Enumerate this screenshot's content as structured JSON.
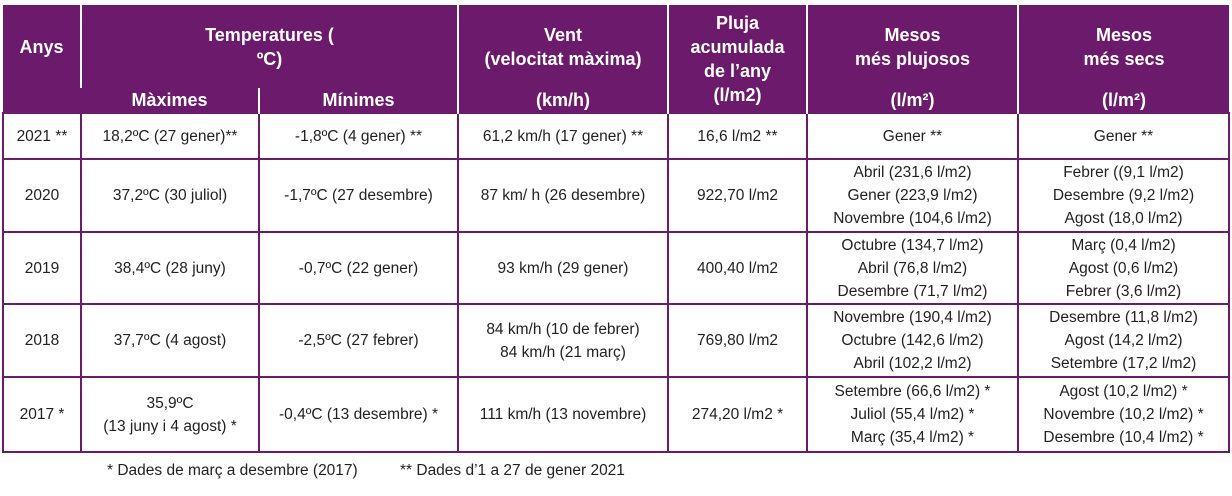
{
  "header": {
    "anys": "Anys",
    "temperatures": [
      "Temperatures (",
      "ºC)"
    ],
    "maximes": "Màximes",
    "minimes": "Mínimes",
    "vent": [
      "Vent",
      "(velocitat màxima)"
    ],
    "vent_unit": "(km/h)",
    "pluja": [
      "Pluja",
      "acumulada",
      "de l’any",
      "(l/m2)"
    ],
    "plujosos": [
      "Mesos",
      "més plujosos"
    ],
    "plujosos_unit": "(l/m²)",
    "secs": [
      "Mesos",
      "més secs"
    ],
    "secs_unit": "(l/m²)"
  },
  "table": {
    "rows": [
      [
        "2021 **",
        "18,2ºC (27 gener)**",
        "-1,8ºC (4 gener) **",
        "61,2 km/h (17 gener) **",
        "16,6 l/m2 **",
        [
          "Gener **"
        ],
        [
          "Gener **"
        ]
      ],
      [
        "2020",
        "37,2ºC (30 juliol)",
        "-1,7ºC (27 desembre)",
        "87 km/ h (26 desembre)",
        "922,70 l/m2",
        [
          "Abril (231,6 l/m2)",
          "Gener (223,9 l/m2)",
          "Novembre (104,6 l/m2)"
        ],
        [
          "Febrer ((9,1 l/m2)",
          "Desembre (9,2 l/m2)",
          "Agost (18,0 l/m2)"
        ]
      ],
      [
        "2019",
        "38,4ºC (28 juny)",
        "-0,7ºC (22 gener)",
        "93 km/h (29 gener)",
        "400,40 l/m2",
        [
          "Octubre (134,7 l/m2)",
          "Abril (76,8 l/m2)",
          "Desembre (71,7 l/m2)"
        ],
        [
          "Març (0,4 l/m2)",
          "Agost (0,6 l/m2)",
          "Febrer (3,6 l/m2)"
        ]
      ],
      [
        "2018",
        "37,7ºC (4 agost)",
        "-2,5ºC (27 febrer)",
        [
          "84 km/h (10 de febrer)",
          "84 km/h (21 març)"
        ],
        "769,80 l/m2",
        [
          "Novembre (190,4 l/m2)",
          "Octubre (142,6 l/m2)",
          "Abril (102,2 l/m2)"
        ],
        [
          "Desembre (11,8 l/m2)",
          "Agost (14,2 l/m2)",
          "Setembre (17,2 l/m2)"
        ]
      ],
      [
        "2017 *",
        [
          "35,9ºC",
          "(13 juny i 4 agost) *"
        ],
        "-0,4ºC (13 desembre) *",
        "111 km/h (13 novembre)",
        "274,20 l/m2 *",
        [
          "Setembre (66,6 l/m2) *",
          "Juliol (55,4 l/m2) *",
          "Març (35,4 l/m2) *"
        ],
        [
          "Agost (10,2 l/m2) *",
          "Novembre (10,2 l/m2) *",
          "Desembre (10,4 l/m2) *"
        ]
      ]
    ]
  },
  "footnotes": [
    "* Dades de març a desembre (2017)",
    "** Dades d’1 a 27 de gener 2021"
  ]
}
